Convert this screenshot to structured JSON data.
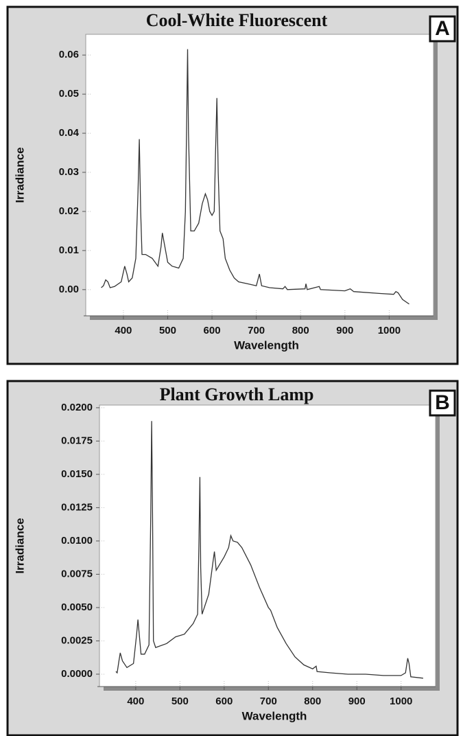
{
  "chart_data": [
    {
      "type": "line",
      "title": "Cool-White Fluorescent",
      "label": "A",
      "xlabel": "Wavelength",
      "ylabel": "Irradiance",
      "color": "#333333",
      "grid": true,
      "xlim": [
        315,
        1100
      ],
      "ylim": [
        -0.0067,
        0.0653
      ],
      "xticks": [
        400,
        500,
        600,
        700,
        800,
        900,
        1000
      ],
      "yticks": [
        {
          "value": 0,
          "label": "0.00"
        },
        0.01,
        0.02,
        0.03,
        0.04,
        0.05,
        0.06
      ],
      "x": [
        350,
        355,
        360,
        365,
        370,
        380,
        395,
        403,
        408,
        412,
        420,
        428,
        433,
        436,
        439,
        442,
        450,
        465,
        478,
        485,
        488,
        492,
        500,
        510,
        525,
        535,
        540,
        543,
        545,
        547,
        552,
        560,
        570,
        578,
        585,
        590,
        595,
        600,
        605,
        608,
        611,
        614,
        618,
        625,
        630,
        640,
        650,
        660,
        680,
        700,
        707,
        712,
        730,
        760,
        765,
        770,
        810,
        812,
        815,
        842,
        845,
        900,
        912,
        920,
        980,
        1010,
        1015,
        1020,
        1030,
        1045
      ],
      "values": [
        0.0005,
        0.001,
        0.0025,
        0.002,
        0.0005,
        0.0008,
        0.002,
        0.006,
        0.004,
        0.002,
        0.003,
        0.008,
        0.025,
        0.0385,
        0.02,
        0.009,
        0.009,
        0.008,
        0.006,
        0.011,
        0.0145,
        0.012,
        0.007,
        0.006,
        0.0055,
        0.008,
        0.02,
        0.045,
        0.0615,
        0.04,
        0.015,
        0.015,
        0.017,
        0.022,
        0.0245,
        0.023,
        0.02,
        0.019,
        0.02,
        0.035,
        0.049,
        0.03,
        0.015,
        0.013,
        0.008,
        0.005,
        0.003,
        0.002,
        0.0015,
        0.001,
        0.004,
        0.001,
        0.0005,
        0.0002,
        0.0008,
        0,
        0.0002,
        0.0015,
        0,
        0.0008,
        0,
        -0.0003,
        0.0002,
        -0.0005,
        -0.001,
        -0.0012,
        -0.0005,
        -0.0008,
        -0.0025,
        -0.0037
      ]
    },
    {
      "type": "line",
      "title": "Plant Growth Lamp",
      "label": "B",
      "xlabel": "Wavelength",
      "ylabel": "Irradiance",
      "color": "#333333",
      "grid": true,
      "xlim": [
        318,
        1078
      ],
      "ylim": [
        -0.00093,
        0.0202
      ],
      "xticks": [
        400,
        500,
        600,
        700,
        800,
        900,
        1000
      ],
      "yticks": [
        {
          "value": 0,
          "label": "0.0000"
        },
        {
          "value": 0.0025,
          "label": "0.0025"
        },
        {
          "value": 0.005,
          "label": "0.0050"
        },
        {
          "value": 0.0075,
          "label": "0.0075"
        },
        {
          "value": 0.01,
          "label": "0.0100"
        },
        {
          "value": 0.0125,
          "label": "0.0125"
        },
        {
          "value": 0.015,
          "label": "0.0150"
        },
        {
          "value": 0.0175,
          "label": "0.0175"
        },
        {
          "value": 0.02,
          "label": "0.0200"
        }
      ],
      "x": [
        355,
        358,
        362,
        365,
        370,
        380,
        395,
        402,
        405,
        408,
        412,
        420,
        430,
        434,
        436,
        438,
        440,
        445,
        470,
        490,
        510,
        530,
        540,
        543,
        545,
        547,
        550,
        565,
        575,
        578,
        582,
        600,
        610,
        615,
        620,
        630,
        640,
        660,
        680,
        700,
        705,
        720,
        740,
        760,
        780,
        800,
        808,
        810,
        840,
        880,
        920,
        960,
        1000,
        1010,
        1015,
        1018,
        1022,
        1050
      ],
      "values": [
        0.0002,
        0.0001,
        0.001,
        0.0016,
        0.001,
        0.0005,
        0.0008,
        0.003,
        0.0041,
        0.003,
        0.0015,
        0.0015,
        0.0022,
        0.012,
        0.019,
        0.012,
        0.0025,
        0.002,
        0.0023,
        0.0028,
        0.003,
        0.0038,
        0.0045,
        0.01,
        0.0148,
        0.008,
        0.0045,
        0.006,
        0.0085,
        0.0092,
        0.0078,
        0.0088,
        0.0095,
        0.0104,
        0.01,
        0.0099,
        0.0095,
        0.0082,
        0.0065,
        0.005,
        0.0048,
        0.0035,
        0.0023,
        0.0013,
        0.0007,
        0.0004,
        0.0006,
        0.0002,
        0.0001,
        0,
        0,
        -0.0001,
        -0.0001,
        0.0001,
        0.0012,
        0.0008,
        -0.0002,
        -0.0003
      ]
    }
  ]
}
